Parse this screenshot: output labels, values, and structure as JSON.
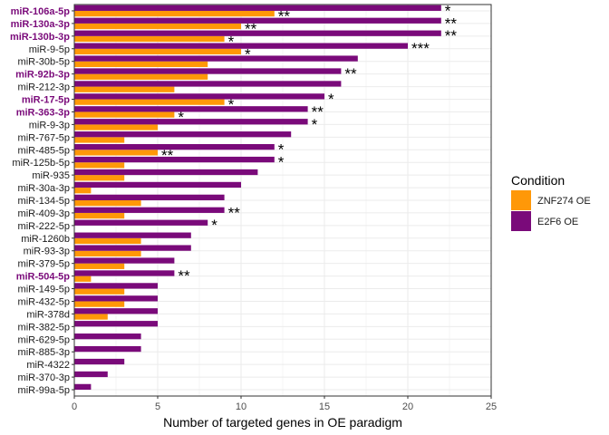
{
  "chart_data": {
    "type": "bar",
    "orientation": "horizontal",
    "xlabel": "Number of targeted genes in OE paradigm",
    "xlim": [
      0,
      25
    ],
    "xticks": [
      0,
      5,
      10,
      15,
      20,
      25
    ],
    "grid": true,
    "categories": [
      "miR-106a-5p",
      "miR-130a-3p",
      "miR-130b-3p",
      "miR-9-5p",
      "miR-30b-5p",
      "miR-92b-3p",
      "miR-212-3p",
      "miR-17-5p",
      "miR-363-3p",
      "miR-9-3p",
      "miR-767-5p",
      "miR-485-5p",
      "miR-125b-5p",
      "miR-935",
      "miR-30a-3p",
      "miR-134-5p",
      "miR-409-3p",
      "miR-222-5p",
      "miR-1260b",
      "miR-93-3p",
      "miR-379-5p",
      "miR-504-5p",
      "miR-149-5p",
      "miR-432-5p",
      "miR-378d",
      "miR-382-5p",
      "miR-629-5p",
      "miR-885-3p",
      "miR-4322",
      "miR-370-3p",
      "miR-99a-5p"
    ],
    "highlighted": [
      "miR-106a-5p",
      "miR-130a-3p",
      "miR-130b-3p",
      "miR-92b-3p",
      "miR-17-5p",
      "miR-363-3p",
      "miR-504-5p"
    ],
    "series": [
      {
        "name": "ZNF274 OE",
        "color": "#ff9808",
        "values": [
          12,
          10,
          9,
          10,
          8,
          8,
          6,
          9,
          6,
          5,
          3,
          5,
          3,
          3,
          1,
          4,
          3,
          null,
          4,
          4,
          3,
          1,
          3,
          3,
          2,
          null,
          null,
          null,
          null,
          null,
          null
        ]
      },
      {
        "name": "E2F6 OE",
        "color": "#7a0a7a",
        "values": [
          22,
          22,
          22,
          20,
          17,
          16,
          16,
          15,
          14,
          14,
          13,
          12,
          12,
          11,
          10,
          9,
          9,
          8,
          7,
          7,
          6,
          6,
          5,
          5,
          5,
          5,
          4,
          4,
          3,
          2,
          1
        ]
      }
    ],
    "annotations": [
      {
        "category": "miR-106a-5p",
        "series": "E2F6 OE",
        "text": "*"
      },
      {
        "category": "miR-106a-5p",
        "series": "ZNF274 OE",
        "text": "**"
      },
      {
        "category": "miR-130a-3p",
        "series": "E2F6 OE",
        "text": "**"
      },
      {
        "category": "miR-130a-3p",
        "series": "ZNF274 OE",
        "text": "**"
      },
      {
        "category": "miR-130b-3p",
        "series": "E2F6 OE",
        "text": "**"
      },
      {
        "category": "miR-130b-3p",
        "series": "ZNF274 OE",
        "text": "*"
      },
      {
        "category": "miR-9-5p",
        "series": "E2F6 OE",
        "text": "***"
      },
      {
        "category": "miR-9-5p",
        "series": "ZNF274 OE",
        "text": "*"
      },
      {
        "category": "miR-92b-3p",
        "series": "E2F6 OE",
        "text": "**"
      },
      {
        "category": "miR-17-5p",
        "series": "E2F6 OE",
        "text": "*"
      },
      {
        "category": "miR-17-5p",
        "series": "ZNF274 OE",
        "text": "*"
      },
      {
        "category": "miR-363-3p",
        "series": "E2F6 OE",
        "text": "**"
      },
      {
        "category": "miR-363-3p",
        "series": "ZNF274 OE",
        "text": "*"
      },
      {
        "category": "miR-9-3p",
        "series": "E2F6 OE",
        "text": "*"
      },
      {
        "category": "miR-485-5p",
        "series": "E2F6 OE",
        "text": "*"
      },
      {
        "category": "miR-485-5p",
        "series": "ZNF274 OE",
        "text": "**"
      },
      {
        "category": "miR-125b-5p",
        "series": "E2F6 OE",
        "text": "*"
      },
      {
        "category": "miR-409-3p",
        "series": "E2F6 OE",
        "text": "**"
      },
      {
        "category": "miR-222-5p",
        "series": "E2F6 OE",
        "text": "*"
      },
      {
        "category": "miR-504-5p",
        "series": "E2F6 OE",
        "text": "**"
      }
    ],
    "legend": {
      "title": "Condition",
      "placement": "right",
      "entries": [
        "ZNF274 OE",
        "E2F6 OE"
      ]
    }
  }
}
